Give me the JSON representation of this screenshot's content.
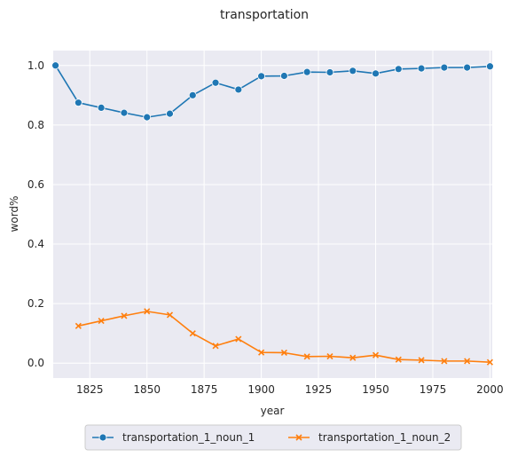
{
  "chart_data": {
    "type": "line",
    "title": "transportation",
    "xlabel": "year",
    "ylabel": "word%",
    "xlim": [
      1809,
      2001
    ],
    "ylim": [
      -0.05,
      1.05
    ],
    "xticks": [
      1825,
      1850,
      1875,
      1900,
      1925,
      1950,
      1975,
      2000
    ],
    "yticks": [
      0.0,
      0.2,
      0.4,
      0.6,
      0.8,
      1.0
    ],
    "xtick_labels": [
      "1825",
      "1850",
      "1875",
      "1900",
      "1925",
      "1950",
      "1975",
      "2000"
    ],
    "ytick_labels": [
      "0.0",
      "0.2",
      "0.4",
      "0.6",
      "0.8",
      "1.0"
    ],
    "grid": true,
    "legend_position": "bottom-center",
    "series": [
      {
        "name": "transportation_1_noun_1",
        "color": "#1f77b4",
        "marker": "circle",
        "x": [
          1810,
          1820,
          1830,
          1840,
          1850,
          1860,
          1870,
          1880,
          1890,
          1900,
          1910,
          1920,
          1930,
          1940,
          1950,
          1960,
          1970,
          1980,
          1990,
          2000
        ],
        "y": [
          1.0,
          0.875,
          0.858,
          0.841,
          0.826,
          0.838,
          0.9,
          0.942,
          0.919,
          0.964,
          0.965,
          0.978,
          0.977,
          0.982,
          0.973,
          0.988,
          0.99,
          0.993,
          0.993,
          0.997
        ]
      },
      {
        "name": "transportation_1_noun_2",
        "color": "#ff7f0e",
        "marker": "x",
        "x": [
          1820,
          1830,
          1840,
          1850,
          1860,
          1870,
          1880,
          1890,
          1900,
          1910,
          1920,
          1930,
          1940,
          1950,
          1960,
          1970,
          1980,
          1990,
          2000
        ],
        "y": [
          0.125,
          0.142,
          0.159,
          0.174,
          0.162,
          0.1,
          0.058,
          0.081,
          0.036,
          0.035,
          0.022,
          0.023,
          0.018,
          0.027,
          0.012,
          0.01,
          0.007,
          0.007,
          0.003
        ]
      }
    ]
  }
}
